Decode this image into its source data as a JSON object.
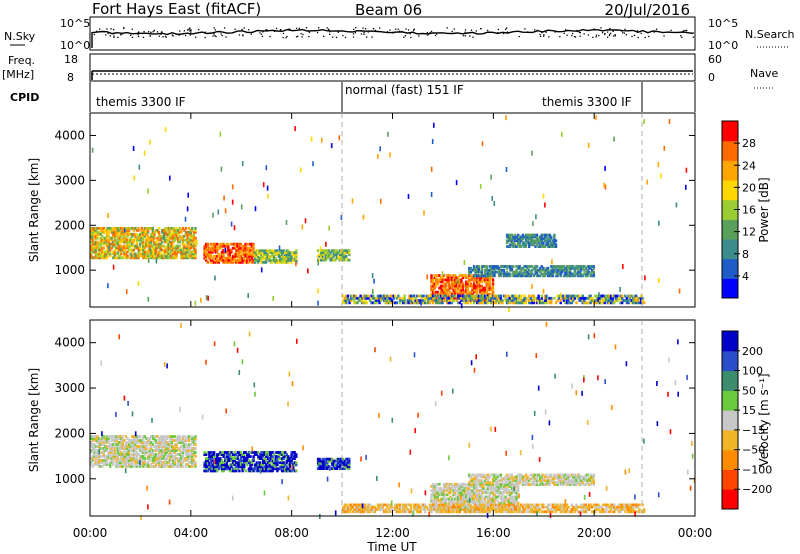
{
  "header": {
    "title": "Fort Hays East (fitACF)",
    "beam": "Beam 06",
    "date": "20/Jul/2016"
  },
  "strip_labels": {
    "nsky": "N.Sky",
    "nsky_ticks": [
      "10^5",
      "10^0"
    ],
    "nsearch": "N.Search",
    "nsearch_ticks": [
      "10^5",
      "10^0"
    ],
    "freq_top": "Freq.",
    "freq_unit": "[MHz]",
    "freq_ticks": [
      "18",
      "8"
    ],
    "nave": "Nave",
    "nave_ticks": [
      "60",
      "0"
    ],
    "cpid": "CPID"
  },
  "cpid_modes": [
    {
      "label": "themis 3300 IF",
      "start": 0.0,
      "end": 10.0
    },
    {
      "label": "normal (fast) 151 IF",
      "start": 10.0,
      "end": 22.0
    },
    {
      "label": "themis 3300 IF",
      "start": 22.0,
      "end": 24.0
    }
  ],
  "colors": {
    "power_scale": [
      "#0000ff",
      "#1e5cc8",
      "#3c8c8c",
      "#5aa05a",
      "#9acd32",
      "#ffd700",
      "#ffa500",
      "#ff6a00",
      "#ff0000"
    ],
    "velocity_scale": [
      "#0000c8",
      "#2a4ec8",
      "#3c8c6e",
      "#6cc83c",
      "#c8c8c8",
      "#f0b428",
      "#ff8c00",
      "#ff4500",
      "#ff0000"
    ]
  },
  "chart_data": [
    {
      "type": "heatmap",
      "title": "",
      "ylabel": "Slant Range [km]",
      "xlabel": "",
      "ylim": [
        180,
        4500
      ],
      "xlim": [
        0,
        24
      ],
      "yticks": [
        1000,
        2000,
        3000,
        4000
      ],
      "colorbar": {
        "label": "Power [dB]",
        "range": [
          0,
          32
        ],
        "ticks": [
          "4",
          "8",
          "12",
          "16",
          "20",
          "24",
          "28"
        ]
      },
      "regions": [
        {
          "t0": 0.0,
          "t1": 4.2,
          "r0": 1250,
          "r1": 1950,
          "level": "high"
        },
        {
          "t0": 4.5,
          "t1": 6.5,
          "r0": 1150,
          "r1": 1600,
          "level": "very-high"
        },
        {
          "t0": 6.5,
          "t1": 8.2,
          "r0": 1150,
          "r1": 1450,
          "level": "medium"
        },
        {
          "t0": 9.0,
          "t1": 10.3,
          "r0": 1200,
          "r1": 1450,
          "level": "medium"
        },
        {
          "t0": 13.5,
          "t1": 16.0,
          "r0": 300,
          "r1": 900,
          "level": "very-high"
        },
        {
          "t0": 15.0,
          "t1": 20.0,
          "r0": 850,
          "r1": 1100,
          "level": "low"
        },
        {
          "t0": 16.5,
          "t1": 18.5,
          "r0": 1500,
          "r1": 1800,
          "level": "low"
        },
        {
          "t0": 10.0,
          "t1": 22.0,
          "r0": 250,
          "r1": 450,
          "level": "mixed"
        }
      ]
    },
    {
      "type": "heatmap",
      "title": "",
      "ylabel": "Slant Range [km]",
      "xlabel": "Time UT",
      "ylim": [
        180,
        4500
      ],
      "xlim": [
        0,
        24
      ],
      "yticks": [
        1000,
        2000,
        3000,
        4000
      ],
      "xticks": [
        "00:00",
        "04:00",
        "08:00",
        "12:00",
        "16:00",
        "20:00",
        "00:00"
      ],
      "colorbar": {
        "label": "Velocity [m s⁻¹]",
        "ticks": [
          "200",
          "100",
          "50",
          "15",
          "-15",
          "-50",
          "-100",
          "-200"
        ]
      },
      "regions": [
        {
          "t0": 0.0,
          "t1": 4.2,
          "r0": 1250,
          "r1": 1950,
          "level": "near-zero"
        },
        {
          "t0": 4.5,
          "t1": 8.2,
          "r0": 1150,
          "r1": 1600,
          "level": "positive-high"
        },
        {
          "t0": 9.0,
          "t1": 10.3,
          "r0": 1200,
          "r1": 1450,
          "level": "positive-high"
        },
        {
          "t0": 13.5,
          "t1": 17.0,
          "r0": 300,
          "r1": 900,
          "level": "near-zero"
        },
        {
          "t0": 15.0,
          "t1": 20.0,
          "r0": 850,
          "r1": 1100,
          "level": "near-zero"
        },
        {
          "t0": 10.0,
          "t1": 22.0,
          "r0": 250,
          "r1": 450,
          "level": "negative"
        }
      ]
    }
  ]
}
